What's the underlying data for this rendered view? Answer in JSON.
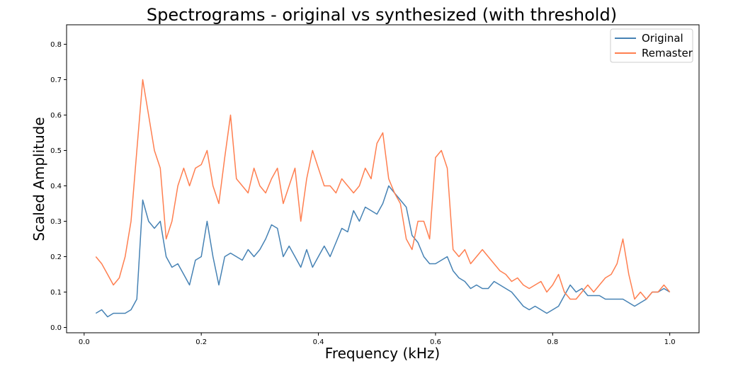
{
  "chart_data": {
    "type": "line",
    "title": "Spectrograms - original vs synthesized (with threshold)",
    "xlabel": "Frequency (kHz)",
    "ylabel": "Scaled Amplitude",
    "xlim": [
      -0.03,
      1.05
    ],
    "ylim": [
      -0.015,
      0.855
    ],
    "xticks": [
      0.0,
      0.2,
      0.4,
      0.6,
      0.8,
      1.0
    ],
    "xtick_labels": [
      "0.0",
      "0.2",
      "0.4",
      "0.6",
      "0.8",
      "1.0"
    ],
    "yticks": [
      0.0,
      0.1,
      0.2,
      0.3,
      0.4,
      0.5,
      0.6,
      0.7,
      0.8
    ],
    "ytick_labels": [
      "0.0",
      "0.1",
      "0.2",
      "0.3",
      "0.4",
      "0.5",
      "0.6",
      "0.7",
      "0.8"
    ],
    "grid": false,
    "legend_position": "top-right",
    "series": [
      {
        "name": "Original",
        "color": "#4682b4",
        "x": [
          0.02,
          0.03,
          0.04,
          0.05,
          0.06,
          0.07,
          0.08,
          0.09,
          0.1,
          0.11,
          0.12,
          0.13,
          0.14,
          0.15,
          0.16,
          0.17,
          0.18,
          0.19,
          0.2,
          0.21,
          0.22,
          0.23,
          0.24,
          0.25,
          0.26,
          0.27,
          0.28,
          0.29,
          0.3,
          0.31,
          0.32,
          0.33,
          0.34,
          0.35,
          0.36,
          0.37,
          0.38,
          0.39,
          0.4,
          0.41,
          0.42,
          0.43,
          0.44,
          0.45,
          0.46,
          0.47,
          0.48,
          0.49,
          0.5,
          0.51,
          0.52,
          0.53,
          0.54,
          0.55,
          0.56,
          0.57,
          0.58,
          0.59,
          0.6,
          0.61,
          0.62,
          0.63,
          0.64,
          0.65,
          0.66,
          0.67,
          0.68,
          0.69,
          0.7,
          0.71,
          0.72,
          0.73,
          0.74,
          0.75,
          0.76,
          0.77,
          0.78,
          0.79,
          0.8,
          0.81,
          0.82,
          0.83,
          0.84,
          0.85,
          0.86,
          0.87,
          0.88,
          0.89,
          0.9,
          0.91,
          0.92,
          0.93,
          0.94,
          0.95,
          0.96,
          0.97,
          0.98,
          0.99,
          1.0
        ],
        "values": [
          0.04,
          0.05,
          0.03,
          0.04,
          0.04,
          0.04,
          0.05,
          0.08,
          0.36,
          0.3,
          0.28,
          0.3,
          0.2,
          0.17,
          0.18,
          0.15,
          0.12,
          0.19,
          0.2,
          0.3,
          0.2,
          0.12,
          0.2,
          0.21,
          0.2,
          0.19,
          0.22,
          0.2,
          0.22,
          0.25,
          0.29,
          0.28,
          0.2,
          0.23,
          0.2,
          0.17,
          0.22,
          0.17,
          0.2,
          0.23,
          0.2,
          0.24,
          0.28,
          0.27,
          0.33,
          0.3,
          0.34,
          0.33,
          0.32,
          0.35,
          0.4,
          0.38,
          0.36,
          0.34,
          0.26,
          0.24,
          0.2,
          0.18,
          0.18,
          0.19,
          0.2,
          0.16,
          0.14,
          0.13,
          0.11,
          0.12,
          0.11,
          0.11,
          0.13,
          0.12,
          0.11,
          0.1,
          0.08,
          0.06,
          0.05,
          0.06,
          0.05,
          0.04,
          0.05,
          0.06,
          0.09,
          0.12,
          0.1,
          0.11,
          0.09,
          0.09,
          0.09,
          0.08,
          0.08,
          0.08,
          0.08,
          0.07,
          0.06,
          0.07,
          0.08,
          0.1,
          0.1,
          0.11,
          0.1
        ]
      },
      {
        "name": "Remaster",
        "color": "#ff7f50",
        "x": [
          0.02,
          0.03,
          0.04,
          0.05,
          0.06,
          0.07,
          0.08,
          0.09,
          0.1,
          0.11,
          0.12,
          0.13,
          0.14,
          0.15,
          0.16,
          0.17,
          0.18,
          0.19,
          0.2,
          0.21,
          0.22,
          0.23,
          0.24,
          0.25,
          0.26,
          0.27,
          0.28,
          0.29,
          0.3,
          0.31,
          0.32,
          0.33,
          0.34,
          0.35,
          0.36,
          0.37,
          0.38,
          0.39,
          0.4,
          0.41,
          0.42,
          0.43,
          0.44,
          0.45,
          0.46,
          0.47,
          0.48,
          0.49,
          0.5,
          0.51,
          0.52,
          0.53,
          0.54,
          0.55,
          0.56,
          0.57,
          0.58,
          0.59,
          0.6,
          0.61,
          0.62,
          0.63,
          0.64,
          0.65,
          0.66,
          0.67,
          0.68,
          0.69,
          0.7,
          0.71,
          0.72,
          0.73,
          0.74,
          0.75,
          0.76,
          0.77,
          0.78,
          0.79,
          0.8,
          0.81,
          0.82,
          0.83,
          0.84,
          0.85,
          0.86,
          0.87,
          0.88,
          0.89,
          0.9,
          0.91,
          0.92,
          0.93,
          0.94,
          0.95,
          0.96,
          0.97,
          0.98,
          0.99,
          1.0
        ],
        "values": [
          0.2,
          0.18,
          0.15,
          0.12,
          0.14,
          0.2,
          0.3,
          0.5,
          0.7,
          0.6,
          0.5,
          0.45,
          0.25,
          0.3,
          0.4,
          0.45,
          0.4,
          0.45,
          0.46,
          0.5,
          0.4,
          0.35,
          0.48,
          0.6,
          0.42,
          0.4,
          0.38,
          0.45,
          0.4,
          0.38,
          0.42,
          0.45,
          0.35,
          0.4,
          0.45,
          0.3,
          0.42,
          0.5,
          0.45,
          0.4,
          0.4,
          0.38,
          0.42,
          0.4,
          0.38,
          0.4,
          0.45,
          0.42,
          0.52,
          0.55,
          0.42,
          0.38,
          0.35,
          0.25,
          0.22,
          0.3,
          0.3,
          0.25,
          0.48,
          0.5,
          0.45,
          0.22,
          0.2,
          0.22,
          0.18,
          0.2,
          0.22,
          0.2,
          0.18,
          0.16,
          0.15,
          0.13,
          0.14,
          0.12,
          0.11,
          0.12,
          0.13,
          0.1,
          0.12,
          0.15,
          0.1,
          0.08,
          0.08,
          0.1,
          0.12,
          0.1,
          0.12,
          0.14,
          0.15,
          0.18,
          0.25,
          0.15,
          0.08,
          0.1,
          0.08,
          0.1,
          0.1,
          0.12,
          0.1
        ]
      }
    ]
  }
}
